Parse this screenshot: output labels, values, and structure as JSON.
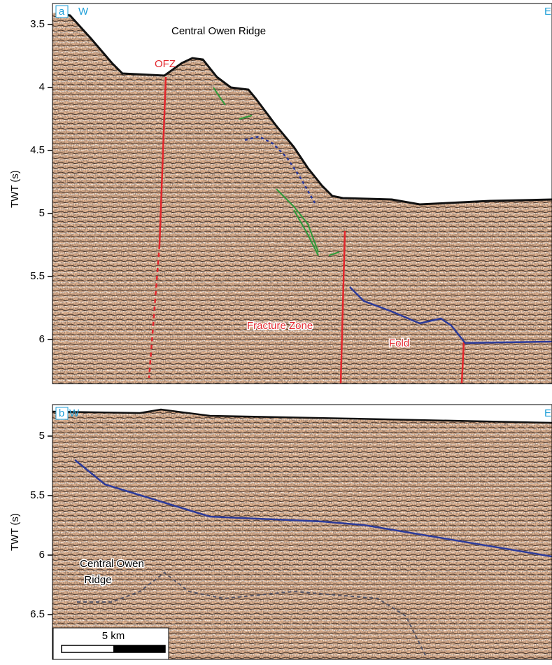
{
  "panels": [
    {
      "label": "a",
      "west": "W",
      "east": "E",
      "axis_title": "TWT (s)",
      "ticks": [
        3.5,
        4,
        4.5,
        5,
        5.5,
        6
      ],
      "annotations": [
        "Central Owen Ridge",
        "OFZ",
        "Fracture Zone",
        "Fold"
      ]
    },
    {
      "label": "b",
      "west": "W",
      "east": "E",
      "axis_title": "TWT (s)",
      "ticks": [
        5,
        5.5,
        6,
        6.5
      ],
      "annotations": [
        "Central Owen",
        "Ridge"
      ],
      "scale_bar": "5 km"
    }
  ]
}
